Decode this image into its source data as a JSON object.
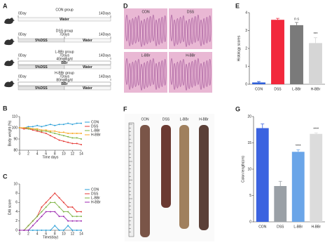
{
  "panel_a": {
    "label": "A",
    "groups": [
      {
        "title": "CON group",
        "days": [
          "0Day",
          "14Days"
        ],
        "phases": [
          "Water"
        ]
      },
      {
        "title": "DSS group",
        "days": [
          "0Day",
          "7Days",
          "14Days"
        ],
        "phases": [
          "5%DSS",
          "Water"
        ]
      },
      {
        "title": "L-BBr group",
        "days": [
          "0Day",
          "7Days",
          "14Days"
        ],
        "dose": "40mg/kg/d",
        "drug": "BBr",
        "phases": [
          "5%DSS",
          "Water"
        ]
      },
      {
        "title": "H-BBr group",
        "days": [
          "0Day",
          "7Days",
          "14Days"
        ],
        "dose": "80mg/kg/d",
        "drug": "BBr",
        "phases": [
          "5%DSS",
          "Water"
        ]
      }
    ]
  },
  "panel_d": {
    "label": "D",
    "images": [
      "CON",
      "DSS",
      "L-BBr",
      "H-BBr"
    ]
  },
  "panel_f": {
    "label": "F",
    "samples": [
      "CON",
      "DSS",
      "L-BBr",
      "H-BBr"
    ]
  },
  "chart_data": [
    {
      "type": "line",
      "label": "B",
      "ylabel": "Body weight (%)",
      "xlabel": "Time days",
      "x": [
        0,
        1,
        2,
        3,
        4,
        5,
        6,
        7,
        8,
        9,
        10,
        11,
        12,
        13,
        14
      ],
      "xlim": [
        0,
        14
      ],
      "xticks": [
        0,
        2,
        4,
        6,
        8,
        10,
        12,
        14
      ],
      "ylim": [
        80,
        110
      ],
      "yticks": [
        80,
        90,
        100,
        110
      ],
      "series": [
        {
          "name": "CON",
          "color": "#2a9fd8",
          "values": [
            100,
            100,
            101,
            101,
            102,
            101,
            102,
            103,
            102,
            103,
            103,
            104,
            103,
            104,
            104
          ]
        },
        {
          "name": "DSS",
          "color": "#e53935",
          "values": [
            100,
            99,
            99,
            98,
            97,
            96,
            95,
            93,
            91,
            89,
            88,
            87,
            86,
            86,
            85
          ]
        },
        {
          "name": "L-BBr",
          "color": "#7cb342",
          "values": [
            100,
            100,
            99,
            99,
            98,
            97,
            97,
            96,
            95,
            94,
            93,
            92,
            91,
            91,
            90
          ]
        },
        {
          "name": "H-BBr",
          "color": "#f9a825",
          "values": [
            100,
            100,
            100,
            99,
            99,
            98,
            98,
            97,
            97,
            96,
            96,
            95,
            95,
            95,
            95
          ]
        }
      ]
    },
    {
      "type": "line",
      "label": "C",
      "ylabel": "DAI score",
      "xlabel": "Time(day)",
      "x": [
        0,
        1,
        2,
        3,
        4,
        5,
        6,
        7,
        8,
        9,
        10,
        11,
        12,
        13,
        14
      ],
      "xlim": [
        0,
        14
      ],
      "xticks": [
        0,
        2,
        4,
        6,
        8,
        10,
        12,
        14
      ],
      "ylim": [
        0,
        10
      ],
      "yticks": [
        0,
        2,
        4,
        6,
        8,
        10
      ],
      "series": [
        {
          "name": "CON",
          "color": "#2a9fd8",
          "values": [
            0,
            0,
            0,
            0,
            0,
            0,
            0,
            0,
            1,
            0,
            0,
            1,
            0,
            0,
            0
          ]
        },
        {
          "name": "DSS",
          "color": "#e53935",
          "values": [
            0,
            0,
            1,
            2,
            3,
            5,
            6,
            7,
            8,
            7,
            6,
            5,
            5,
            4,
            4
          ]
        },
        {
          "name": "L-BBr",
          "color": "#7cb342",
          "values": [
            0,
            0,
            1,
            2,
            3,
            4,
            5,
            6,
            6,
            5,
            4,
            4,
            3,
            3,
            3
          ]
        },
        {
          "name": "H-BBr",
          "color": "#9c27b0",
          "values": [
            0,
            0,
            0,
            1,
            2,
            3,
            4,
            4,
            4,
            3,
            3,
            2,
            2,
            2,
            2
          ]
        }
      ]
    },
    {
      "type": "bar",
      "label": "E",
      "ylabel": "Histology scores",
      "categories": [
        "CON",
        "DSS",
        "L-BBr",
        "H-BBr"
      ],
      "values": [
        0.1,
        3.6,
        3.3,
        2.3
      ],
      "errors": [
        0.05,
        0.08,
        0.15,
        0.3
      ],
      "colors": [
        "#2f5fd8",
        "#f2283c",
        "#7a7a7a",
        "#d6d6d6"
      ],
      "annotations": [
        null,
        null,
        "n s",
        "***"
      ],
      "ylim": [
        0,
        4
      ],
      "yticks": [
        0,
        1,
        2,
        3,
        4
      ]
    },
    {
      "type": "bar",
      "label": "G",
      "ylabel": "Colon length(cm)",
      "categories": [
        "CON",
        "DSS",
        "L-BBr",
        "H-BBr"
      ],
      "values": [
        17.8,
        6.8,
        13.3,
        16.7
      ],
      "errors": [
        0.8,
        0.9,
        0.4,
        0.2
      ],
      "colors": [
        "#3b63e0",
        "#9aa0a6",
        "#6aa5e8",
        "#dcdcdc"
      ],
      "annotations": [
        null,
        null,
        "****",
        "****"
      ],
      "ylim": [
        0,
        20
      ],
      "yticks": [
        0,
        5,
        10,
        15,
        20
      ]
    }
  ]
}
